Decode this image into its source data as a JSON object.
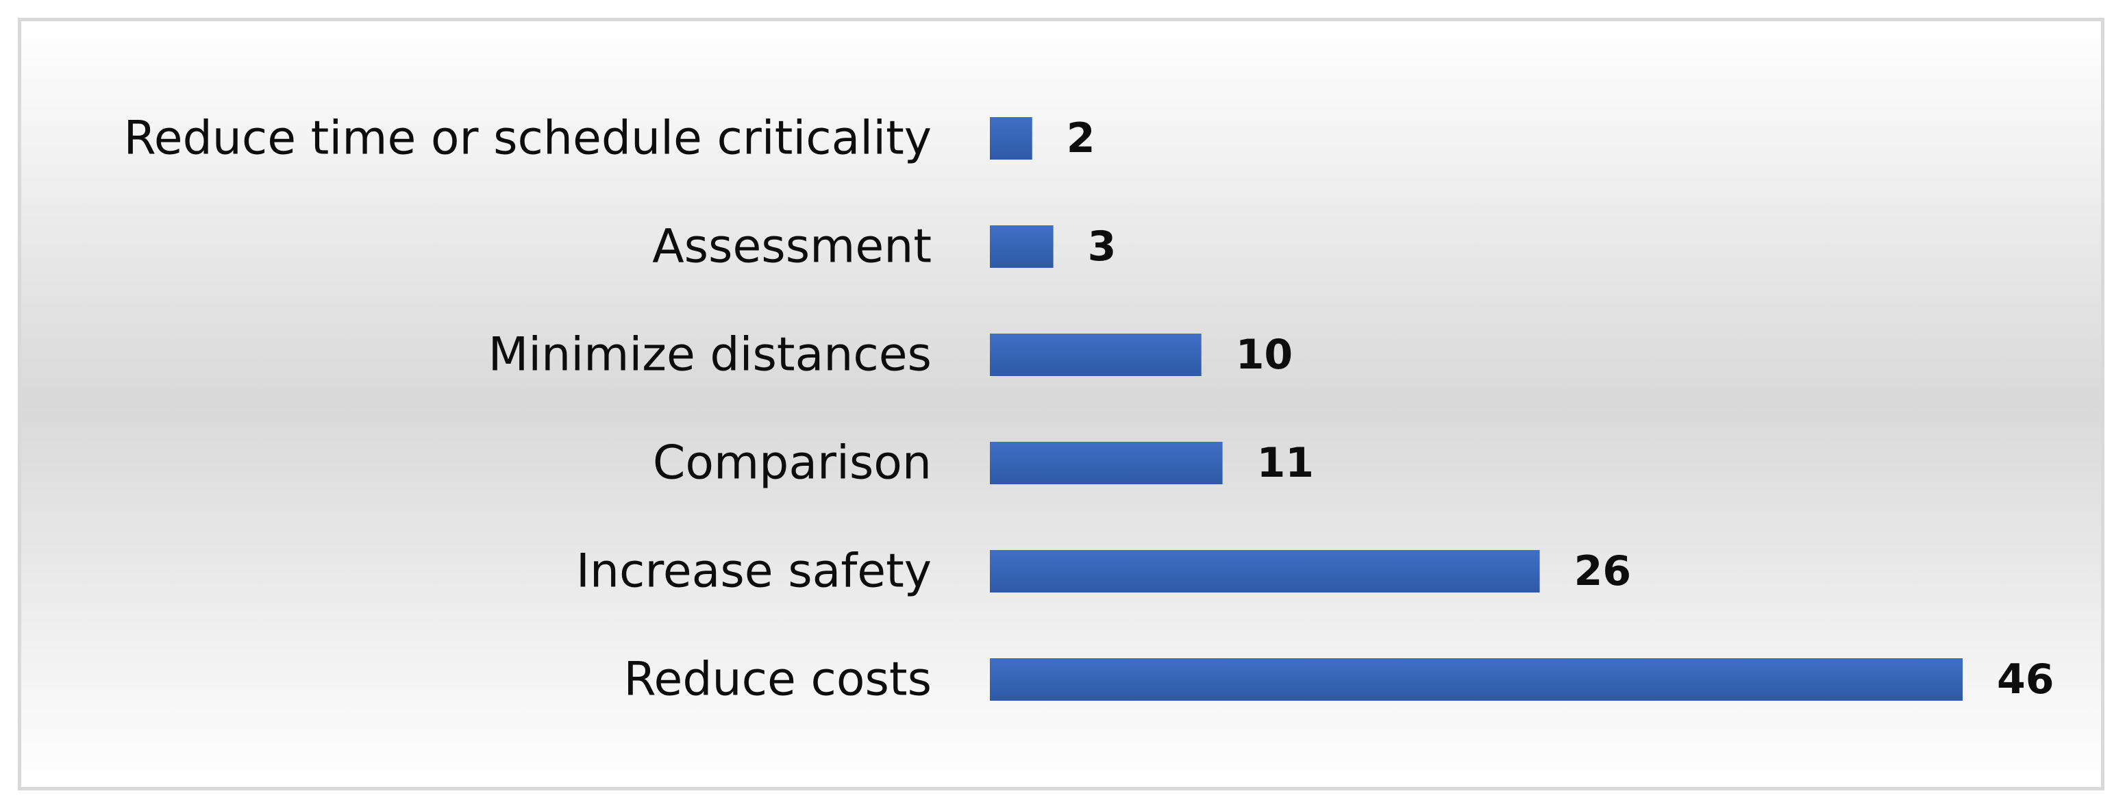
{
  "chart_data": {
    "type": "bar",
    "orientation": "horizontal",
    "categories": [
      "Reduce time or schedule criticality",
      "Assessment",
      "Minimize distances",
      "Comparison",
      "Increase safety",
      "Reduce costs"
    ],
    "values": [
      2,
      3,
      10,
      11,
      26,
      46
    ],
    "data_labels": [
      "2",
      "3",
      "10",
      "11",
      "26",
      "46"
    ],
    "title": "",
    "xlabel": "",
    "ylabel": "",
    "xlim": [
      0,
      46
    ],
    "grid": false,
    "legend": "none",
    "bar_color": "#3f6fc4",
    "bar_color_dark": "#2f59a8"
  }
}
